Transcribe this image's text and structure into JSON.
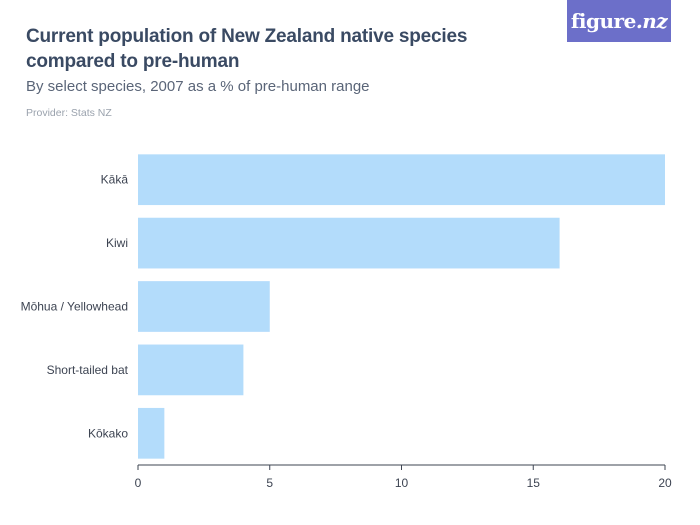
{
  "header": {
    "title": "Current population of New Zealand native species compared to pre-human",
    "subtitle": "By select species, 2007 as a % of pre-human range",
    "provider": "Provider: Stats NZ"
  },
  "logo": {
    "text_main": "figure",
    "text_suffix": ".nz",
    "bg_color": "#6c6fc9"
  },
  "colors": {
    "bar": "#b3dcfb",
    "axis": "#3d4452",
    "text": "#3d4452"
  },
  "chart_data": {
    "type": "bar",
    "orientation": "horizontal",
    "categories": [
      "Kākā",
      "Kiwi",
      "Mōhua / Yellowhead",
      "Short-tailed bat",
      "Kōkako"
    ],
    "values": [
      20,
      16,
      5,
      4,
      1
    ],
    "xlim": [
      0,
      20
    ],
    "xticks": [
      0,
      5,
      10,
      15,
      20
    ],
    "grid": false,
    "legend": "none"
  }
}
